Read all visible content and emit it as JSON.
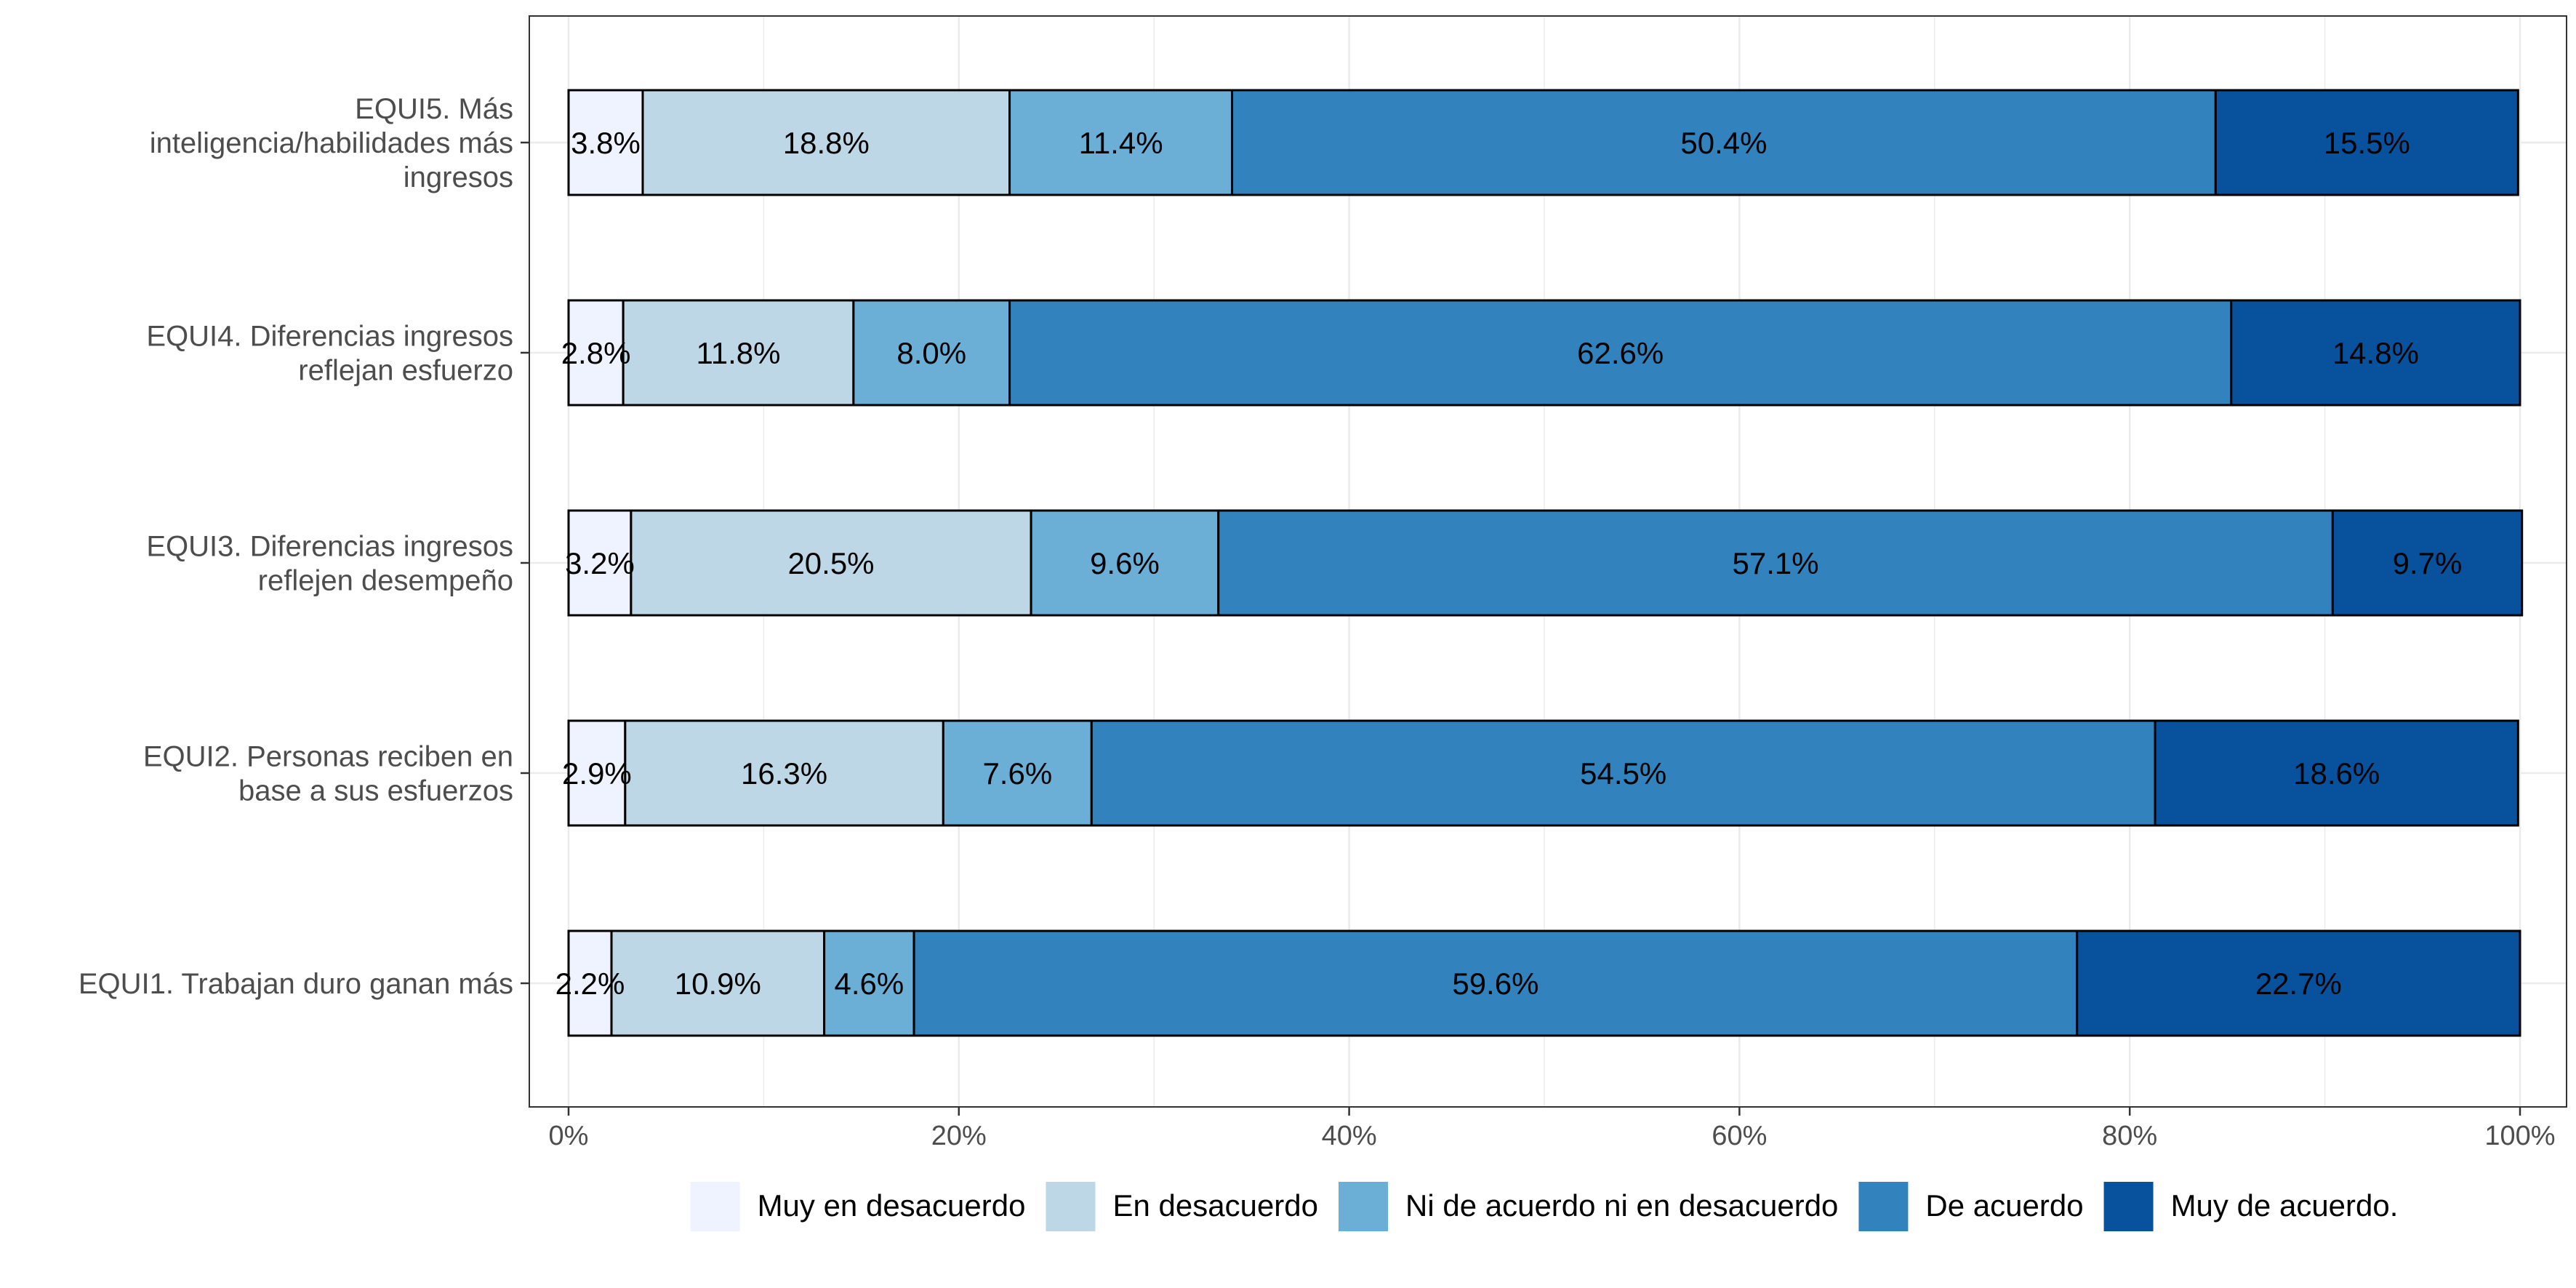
{
  "chart_data": {
    "type": "bar",
    "orientation": "horizontal",
    "stacked": true,
    "categories": [
      "EQUI5. Más inteligencia/habilidades más ingresos",
      "EQUI4. Diferencias ingresos reflejan esfuerzo",
      "EQUI3. Diferencias ingresos reflejen desempeño",
      "EQUI2. Personas reciben en base a sus esfuerzos",
      "EQUI1. Trabajan duro ganan más"
    ],
    "category_lines": [
      [
        "EQUI5. Más",
        "inteligencia/habilidades más",
        "ingresos"
      ],
      [
        "EQUI4. Diferencias ingresos",
        "reflejan esfuerzo"
      ],
      [
        "EQUI3. Diferencias ingresos",
        "reflejen desempeño"
      ],
      [
        "EQUI2. Personas reciben en",
        "base a sus esfuerzos"
      ],
      [
        "EQUI1. Trabajan duro ganan más"
      ]
    ],
    "series": [
      {
        "name": "Muy en desacuerdo",
        "color": "#eff3ff",
        "values": [
          3.8,
          2.8,
          3.2,
          2.9,
          2.2
        ],
        "labels": [
          "3.8%",
          "2.8%",
          "3.2%",
          "2.9%",
          "2.2%"
        ]
      },
      {
        "name": "En desacuerdo",
        "color": "#bdd7e7",
        "values": [
          18.8,
          11.8,
          20.5,
          16.3,
          10.9
        ],
        "labels": [
          "18.8%",
          "11.8%",
          "20.5%",
          "16.3%",
          "10.9%"
        ]
      },
      {
        "name": "Ni de acuerdo ni en desacuerdo",
        "color": "#6baed6",
        "values": [
          11.4,
          8.0,
          9.6,
          7.6,
          4.6
        ],
        "labels": [
          "11.4%",
          "8.0%",
          "9.6%",
          "7.6%",
          "4.6%"
        ]
      },
      {
        "name": "De acuerdo",
        "color": "#3182bd",
        "values": [
          50.4,
          62.6,
          57.1,
          54.5,
          59.6
        ],
        "labels": [
          "50.4%",
          "62.6%",
          "57.1%",
          "54.5%",
          "59.6%"
        ]
      },
      {
        "name": "Muy de acuerdo.",
        "color": "#08519c",
        "values": [
          15.5,
          14.8,
          9.7,
          18.6,
          22.7
        ],
        "labels": [
          "15.5%",
          "14.8%",
          "9.7%",
          "18.6%",
          "22.7%"
        ]
      }
    ],
    "xlim": [
      0,
      100
    ],
    "x_ticks": [
      0,
      20,
      40,
      60,
      80,
      100
    ],
    "x_tick_labels": [
      "0%",
      "20%",
      "40%",
      "60%",
      "80%",
      "100%"
    ],
    "xlabel": "",
    "ylabel": "",
    "title": "",
    "grid": true,
    "legend_position": "bottom"
  }
}
